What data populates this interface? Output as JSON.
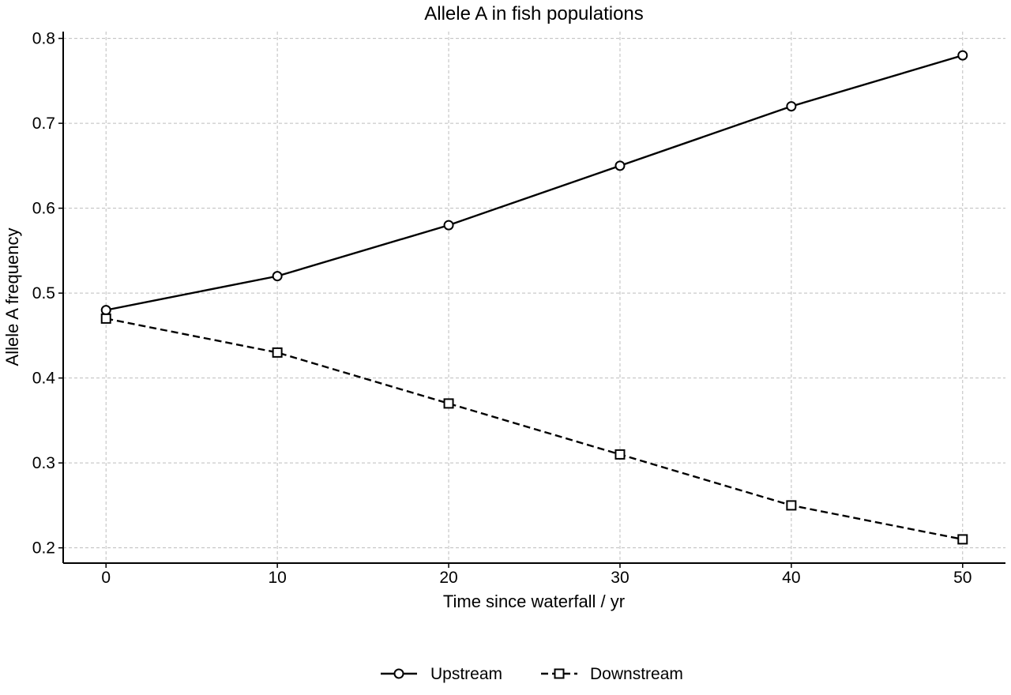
{
  "chart_data": {
    "type": "line",
    "title": "Allele A in fish populations",
    "xlabel": "Time since waterfall / yr",
    "ylabel": "Allele A frequency",
    "x": [
      0,
      10,
      20,
      30,
      40,
      50
    ],
    "xticks": [
      "0",
      "10",
      "20",
      "30",
      "40",
      "50"
    ],
    "yticks": [
      "0.2",
      "0.3",
      "0.4",
      "0.5",
      "0.6",
      "0.7",
      "0.8"
    ],
    "xlim": [
      -2.5,
      52.5
    ],
    "ylim": [
      0.182,
      0.808
    ],
    "grid": true,
    "legend_position": "bottom-center, below plot",
    "series": [
      {
        "name": "Upstream",
        "values": [
          0.48,
          0.52,
          0.58,
          0.65,
          0.72,
          0.78
        ],
        "line_style": "solid",
        "marker": "circle",
        "color": "#000000"
      },
      {
        "name": "Downstream",
        "values": [
          0.47,
          0.43,
          0.37,
          0.31,
          0.25,
          0.21
        ],
        "line_style": "dashed",
        "marker": "square",
        "color": "#000000"
      }
    ]
  }
}
